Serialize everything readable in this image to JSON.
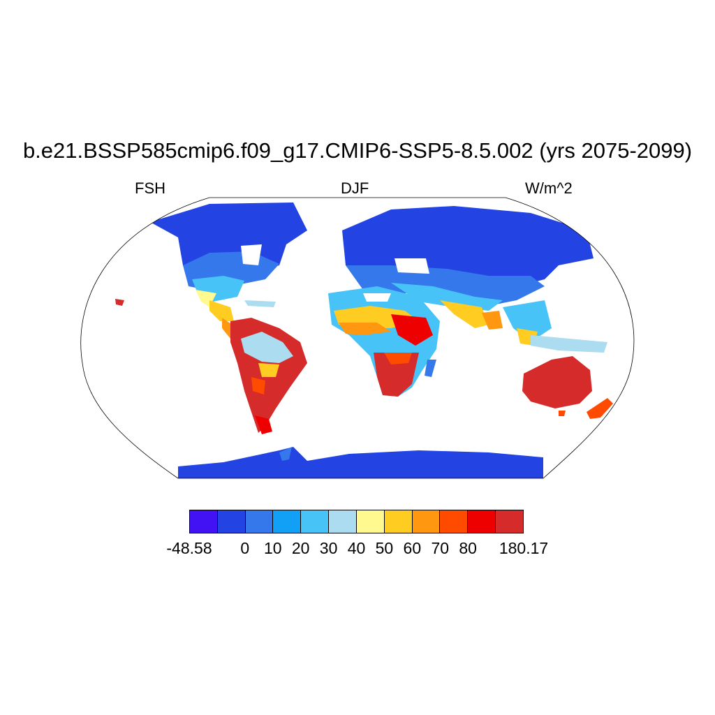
{
  "title": "b.e21.BSSP585cmip6.f09_g17.CMIP6-SSP5-8.5.002 (yrs 2075-2099)",
  "variable": "FSH",
  "season": "DJF",
  "units": "W/m^2",
  "colorbar": {
    "colors": [
      "#4212f5",
      "#2443e3",
      "#3478ec",
      "#12a0f7",
      "#47c3f7",
      "#acdcf0",
      "#fff98f",
      "#ffcc22",
      "#ff9810",
      "#ff4b00",
      "#ee0000",
      "#d52b2b"
    ],
    "labels": [
      "-48.58",
      "0",
      "10",
      "20",
      "30",
      "40",
      "50",
      "60",
      "70",
      "80",
      "180.17"
    ]
  }
}
